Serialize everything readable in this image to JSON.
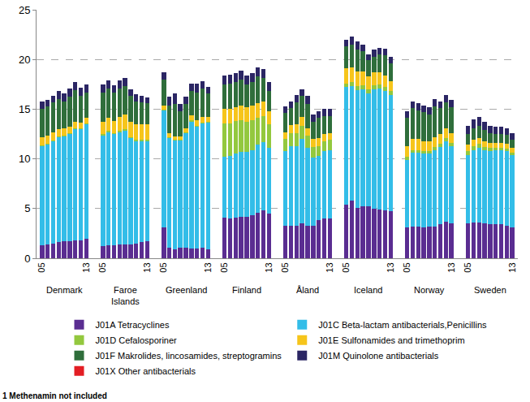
{
  "chart_data": {
    "type": "bar",
    "stacked": true,
    "groups": [
      "Denmark",
      "Faroe Islands",
      "Greenland",
      "Finland",
      "Åland",
      "Iceland",
      "Norway",
      "Sweden"
    ],
    "categories": [
      "05",
      null,
      null,
      null,
      null,
      null,
      null,
      null,
      "13",
      "05",
      null,
      null,
      null,
      null,
      null,
      null,
      null,
      "13",
      "05",
      null,
      null,
      null,
      null,
      null,
      null,
      null,
      "13",
      "05",
      null,
      null,
      null,
      null,
      null,
      null,
      null,
      "13",
      "05",
      null,
      null,
      null,
      null,
      null,
      null,
      null,
      "13",
      "05",
      null,
      null,
      null,
      null,
      null,
      null,
      null,
      "13",
      "05",
      null,
      null,
      null,
      null,
      null,
      null,
      null,
      "13",
      "05",
      null,
      null,
      null,
      null,
      null,
      null,
      null,
      "13"
    ],
    "series": [
      {
        "name": "J01A Tetracyclines",
        "color": "#5a2d91",
        "values": [
          1.3,
          1.4,
          1.5,
          1.6,
          1.7,
          1.7,
          1.8,
          1.8,
          2.0,
          1.2,
          1.3,
          1.3,
          1.4,
          1.4,
          1.4,
          1.5,
          1.6,
          1.7,
          3.1,
          1.1,
          0.9,
          1.1,
          1.1,
          1.0,
          1.0,
          1.1,
          0.9,
          4.1,
          4.0,
          4.1,
          4.2,
          4.2,
          4.3,
          4.6,
          4.8,
          4.5,
          3.3,
          3.3,
          3.3,
          3.5,
          3.3,
          3.3,
          3.8,
          4.0,
          4.0,
          5.4,
          5.8,
          5.1,
          5.2,
          5.2,
          5.0,
          4.9,
          4.8,
          4.7,
          3.1,
          3.2,
          3.2,
          3.1,
          3.2,
          3.2,
          3.4,
          3.7,
          3.5,
          3.5,
          3.6,
          3.6,
          3.5,
          3.4,
          3.4,
          3.4,
          3.3,
          3.1
        ]
      },
      {
        "name": "J01C Beta-lactam antibacterials,Penicillins",
        "color": "#33bde8",
        "values": [
          10.0,
          10.1,
          10.3,
          10.6,
          10.6,
          10.8,
          11.2,
          11.2,
          11.5,
          11.2,
          11.4,
          11.2,
          11.3,
          11.5,
          10.7,
          10.3,
          10.2,
          10.1,
          11.8,
          11.0,
          11.0,
          10.8,
          11.5,
          12.8,
          12.3,
          12.5,
          12.8,
          6.1,
          6.3,
          6.4,
          6.5,
          6.5,
          6.6,
          6.8,
          6.9,
          6.6,
          7.5,
          8.0,
          8.0,
          8.5,
          7.8,
          6.8,
          6.5,
          6.8,
          6.9,
          11.8,
          11.5,
          11.8,
          11.8,
          11.4,
          12.0,
          12.2,
          12.0,
          11.7,
          6.8,
          7.4,
          7.4,
          7.4,
          7.3,
          7.7,
          7.8,
          8.1,
          7.8,
          6.9,
          7.3,
          7.5,
          7.4,
          7.4,
          7.5,
          7.5,
          7.5,
          7.3
        ]
      },
      {
        "name": "J01D Cefalosporiner",
        "color": "#93c83e",
        "values": [
          0.05,
          0.05,
          0.05,
          0.05,
          0.05,
          0.05,
          0.05,
          0.05,
          0.05,
          0.1,
          0.1,
          0.1,
          0.1,
          0.1,
          0.1,
          0.1,
          0.1,
          0.1,
          0.05,
          0.05,
          0.05,
          0.05,
          0.05,
          0.05,
          0.05,
          0.05,
          0.05,
          3.4,
          3.3,
          3.3,
          3.2,
          3.0,
          3.0,
          2.7,
          2.6,
          2.4,
          1.2,
          1.3,
          1.3,
          1.3,
          1.2,
          1.1,
          1.0,
          1.0,
          1.0,
          0.4,
          0.4,
          0.4,
          0.4,
          0.4,
          0.4,
          0.4,
          0.4,
          0.4,
          0.3,
          0.3,
          0.3,
          0.3,
          0.3,
          0.3,
          0.3,
          0.3,
          0.3,
          0.4,
          0.4,
          0.4,
          0.3,
          0.3,
          0.2,
          0.2,
          0.2,
          0.2
        ]
      },
      {
        "name": "J01E Sulfonamides and trimethoprim",
        "color": "#f6c51b",
        "values": [
          0.8,
          0.8,
          0.8,
          0.7,
          0.7,
          0.7,
          0.7,
          0.6,
          0.6,
          1.2,
          1.3,
          1.2,
          1.4,
          1.5,
          1.5,
          1.6,
          1.6,
          1.6,
          0.4,
          0.4,
          0.3,
          0.3,
          0.4,
          0.5,
          0.5,
          0.6,
          0.5,
          1.4,
          1.4,
          1.4,
          1.5,
          1.5,
          1.5,
          1.5,
          1.5,
          1.3,
          0.7,
          0.8,
          0.9,
          0.9,
          0.8,
          0.8,
          0.8,
          0.7,
          0.7,
          1.5,
          1.5,
          1.5,
          1.4,
          1.3,
          1.3,
          1.2,
          1.2,
          1.0,
          1.1,
          1.1,
          1.1,
          1.0,
          1.0,
          1.0,
          1.0,
          1.0,
          1.0,
          0.6,
          0.6,
          0.6,
          0.6,
          0.5,
          0.5,
          0.5,
          0.5,
          0.5
        ]
      },
      {
        "name": "J01F Makrolides, lincosamides, streptogramins",
        "color": "#2f6e3b",
        "values": [
          2.9,
          2.9,
          3.0,
          3.1,
          2.7,
          3.0,
          3.2,
          2.7,
          2.5,
          3.0,
          3.0,
          2.9,
          2.9,
          2.8,
          2.6,
          2.3,
          2.2,
          2.1,
          2.6,
          2.8,
          3.3,
          2.5,
          2.5,
          2.5,
          2.8,
          2.8,
          2.3,
          2.5,
          2.6,
          2.5,
          2.6,
          2.3,
          2.3,
          2.7,
          2.3,
          2.0,
          1.9,
          1.7,
          2.2,
          2.1,
          2.4,
          1.7,
          2.0,
          1.8,
          1.7,
          2.2,
          2.3,
          2.2,
          2.0,
          1.6,
          1.6,
          1.8,
          2.0,
          1.8,
          2.8,
          3.1,
          2.9,
          2.9,
          2.7,
          3.1,
          2.6,
          2.6,
          2.6,
          1.1,
          1.2,
          1.2,
          1.1,
          1.0,
          0.9,
          0.9,
          0.9,
          0.8
        ]
      },
      {
        "name": "J01M Quinolone antibacterials",
        "color": "#2b2664",
        "values": [
          0.7,
          0.7,
          0.7,
          0.8,
          0.8,
          0.8,
          0.8,
          0.8,
          0.8,
          0.8,
          0.8,
          0.7,
          0.8,
          0.8,
          0.7,
          0.7,
          0.6,
          0.6,
          0.8,
          0.9,
          1.0,
          0.8,
          0.7,
          0.7,
          0.9,
          0.8,
          0.7,
          0.9,
          0.9,
          0.9,
          0.9,
          0.9,
          0.9,
          0.9,
          0.9,
          0.9,
          0.7,
          0.7,
          0.7,
          0.7,
          0.8,
          0.8,
          0.7,
          0.7,
          0.7,
          0.7,
          0.8,
          0.8,
          0.7,
          0.6,
          0.7,
          0.7,
          0.7,
          0.7,
          0.7,
          0.7,
          0.7,
          0.7,
          0.7,
          0.7,
          0.7,
          0.7,
          0.7,
          0.8,
          0.9,
          0.9,
          0.8,
          0.7,
          0.7,
          0.7,
          0.7,
          0.7
        ]
      },
      {
        "name": "J01X Other antibacterials",
        "color": "#e31e24",
        "values": [
          0,
          0,
          0,
          0,
          0,
          0,
          0,
          0,
          0,
          0,
          0,
          0,
          0,
          0,
          0,
          0,
          0,
          0,
          0,
          0,
          0,
          0,
          0,
          0,
          0,
          0,
          0,
          0,
          0,
          0,
          0,
          0,
          0,
          0,
          0,
          0,
          0,
          0,
          0,
          0,
          0,
          0,
          0,
          0,
          0,
          0,
          0,
          0,
          0,
          0,
          0,
          0,
          0,
          0,
          0,
          0,
          0,
          0,
          0,
          0,
          0,
          0,
          0,
          0,
          0,
          0,
          0,
          0,
          0,
          0,
          0,
          0
        ]
      }
    ],
    "ylim": [
      0,
      25
    ],
    "yticks": [
      0,
      5,
      10,
      15,
      20,
      25
    ],
    "grid": true,
    "legend": "bottom",
    "note": "1 Methenamin not included"
  }
}
